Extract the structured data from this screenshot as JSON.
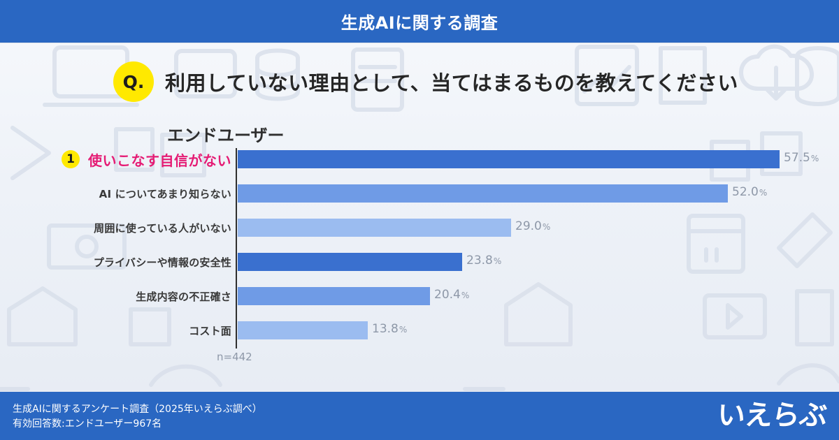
{
  "header": {
    "title": "生成AIに関する調査"
  },
  "question": {
    "badge": "Q.",
    "text": "利用していない理由として、当てはまるものを教えてください"
  },
  "segment": {
    "title": "エンドユーザー"
  },
  "note": {
    "sample_size": "n=442"
  },
  "footer": {
    "line1": "生成AIに関するアンケート調査（2025年いえらぶ調べ）",
    "line2": "有効回答数:エンドユーザー967名",
    "logo_text": "いえらぶ"
  },
  "colors": {
    "header_blue": "#2a67c2",
    "bar_blue_dark": "#3a70cf",
    "bar_blue_mid": "#6f9be6",
    "bar_blue_light": "#9bbcf0",
    "highlight_pink": "#e51b74",
    "badge_yellow": "#ffe900",
    "value_gray": "#8e98a8"
  },
  "chart_data": {
    "type": "bar",
    "orientation": "horizontal",
    "categories": [
      "使いこなす自信がない",
      "AI についてあまり知らない",
      "周囲に使っている人がいない",
      "プライバシーや情報の安全性",
      "生成内容の不正確さ",
      "コスト面"
    ],
    "values": [
      57.5,
      52.0,
      29.0,
      23.8,
      20.4,
      13.8
    ],
    "value_labels": [
      "57.5",
      "52.0",
      "29.0",
      "23.8",
      "20.4",
      "13.8"
    ],
    "value_suffix": "%",
    "highlight_rank": "1",
    "xlim": [
      0,
      60
    ],
    "grid": false,
    "legend": "none"
  }
}
